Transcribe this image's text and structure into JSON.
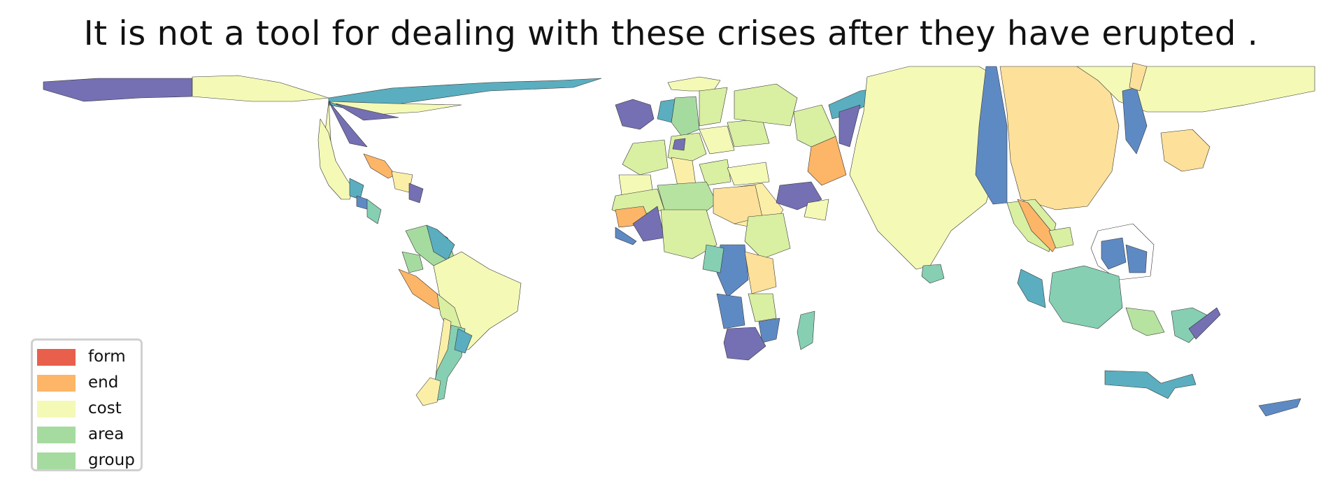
{
  "title": "It is not a tool for dealing with these crises after they have erupted .",
  "legend": {
    "position": "bottom-left",
    "items": [
      {
        "label": "form",
        "color": "#e8604c"
      },
      {
        "label": "end",
        "color": "#fdb567"
      },
      {
        "label": "cost",
        "color": "#f4f9b6"
      },
      {
        "label": "area",
        "color": "#a6dba0"
      },
      {
        "label": "group",
        "color": "#a6dba0"
      }
    ]
  },
  "palette": {
    "purple": "#7570b3",
    "blue": "#5e8ac4",
    "teal": "#5aaebf",
    "seafoam": "#86cfb3",
    "lightgreen": "#b7e3a0",
    "yellowgreen": "#d9efa2",
    "paleyellow": "#f4f9b6",
    "cream": "#fbefa8",
    "tan": "#fde09a",
    "orange": "#fdb567",
    "outline": "#333333"
  }
}
